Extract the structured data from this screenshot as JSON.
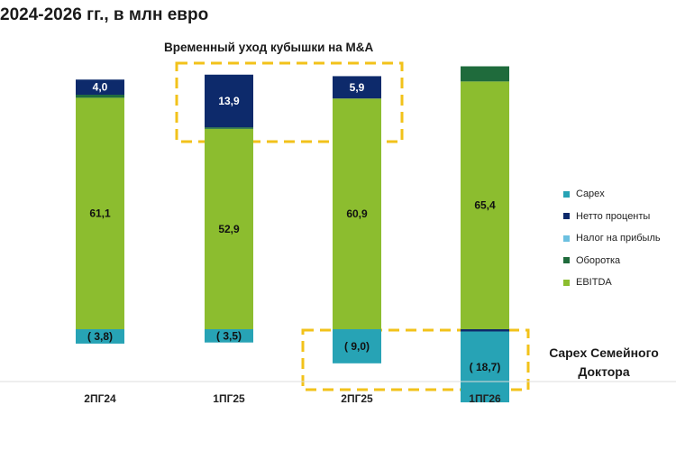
{
  "title": "2024-2026 гг., в млн евро",
  "annotations": {
    "m_and_a": "Временный уход кубышки на M&A",
    "capex_family_doctor": "Capex Семейного Доктора"
  },
  "colors": {
    "EBITDA": "#8cbd2f",
    "Оборотка": "#1f6b3c",
    "Налог на прибыль": "#6cc0e0",
    "Нетто проценты": "#0d2a6b",
    "Capex": "#27a3b5",
    "highlight": "#f2c21a"
  },
  "chart_data": {
    "type": "bar",
    "stacked": true,
    "categories": [
      "2ПГ24",
      "1ПГ25",
      "2ПГ25",
      "1ПГ26"
    ],
    "series": [
      {
        "name": "EBITDA",
        "values": [
          61.1,
          52.9,
          60.9,
          65.4
        ],
        "labels": [
          "61,1",
          "52,9",
          "60,9",
          "65,4"
        ]
      },
      {
        "name": "Оборотка",
        "values": [
          0.8,
          0.4,
          0,
          4.0
        ],
        "labels": [
          "",
          "",
          "",
          ""
        ]
      },
      {
        "name": "Налог на прибыль",
        "values": [
          0,
          0,
          0,
          0
        ],
        "labels": [
          "",
          "",
          "",
          ""
        ]
      },
      {
        "name": "Нетто проценты",
        "values": [
          4.0,
          13.9,
          5.9,
          -0.6
        ],
        "labels": [
          "4,0",
          "13,9",
          "5,9",
          ""
        ]
      },
      {
        "name": "Capex",
        "values": [
          -3.8,
          -3.5,
          -9.0,
          -18.7
        ],
        "labels": [
          "( 3,8)",
          "( 3,5)",
          "( 9,0)",
          "( 18,7)"
        ]
      }
    ],
    "legend": [
      "Capex",
      "Нетто проценты",
      "Налог на прибыль",
      "Оборотка",
      "EBITDA"
    ],
    "legend_labels": [
      "Capex",
      "Нетто проценты",
      "Налог на прибыль",
      "Оборотка",
      "EBITDA"
    ],
    "legend_position": "right",
    "grid": false
  }
}
